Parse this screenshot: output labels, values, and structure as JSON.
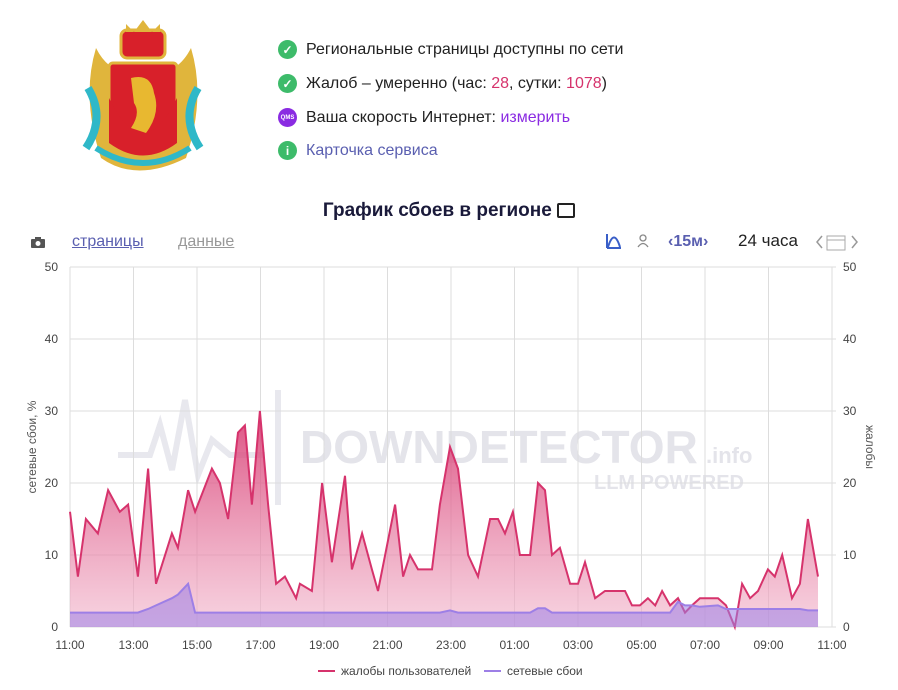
{
  "header": {
    "status": [
      {
        "text": "Региональные страницы доступны по сети"
      },
      {
        "text": "Жалоб – умеренно (час: ",
        "hour": 28,
        "sep": ", сутки: ",
        "day": 1078,
        "end": ")"
      },
      {
        "icon_text": "QMS",
        "text": "Ваша скорость Интернет: ",
        "link": "измерить"
      },
      {
        "link": "Карточка сервиса"
      }
    ]
  },
  "toolbar": {
    "tabs": [
      "страницы",
      "данные"
    ],
    "interval": "15м",
    "range": "24 часа"
  },
  "chart_data": {
    "type": "area",
    "title": "График сбоев в регионе",
    "y_axis_label": "сетевые сбои, %",
    "y2_axis_label": "жалобы",
    "watermark": [
      "DOWNDETECTOR",
      ".info",
      "LLM POWERED"
    ],
    "x": [
      0,
      0.25,
      0.5,
      0.88,
      1.2,
      1.57,
      1.83,
      2.14,
      2.46,
      2.71,
      3.21,
      3.4,
      3.72,
      3.94,
      4.47,
      4.72,
      4.98,
      5.29,
      5.51,
      5.73,
      5.98,
      6.24,
      6.49,
      6.77,
      7.12,
      7.24,
      7.62,
      7.94,
      8.25,
      8.66,
      8.88,
      9.2,
      9.51,
      9.7,
      10.24,
      10.49,
      10.71,
      10.96,
      11.4,
      11.65,
      11.97,
      12.22,
      12.54,
      12.85,
      13.23,
      13.48,
      13.7,
      13.95,
      14.17,
      14.49,
      14.74,
      14.96,
      15.18,
      15.43,
      15.75,
      16,
      16.22,
      16.54,
      16.85,
      17.48,
      17.7,
      17.95,
      18.2,
      18.43,
      18.65,
      18.9,
      19.15,
      19.37,
      19.59,
      19.84,
      20.41,
      20.66,
      20.94,
      21.17,
      21.42,
      21.67,
      21.98,
      22.2,
      22.43,
      22.74,
      22.99,
      23.24,
      23.56
    ],
    "series": [
      {
        "name": "жалобы пользователей",
        "color": "#d6336c",
        "axis": "y2",
        "values": [
          16,
          7,
          15,
          13,
          19,
          16,
          17,
          7,
          22,
          6,
          13,
          11,
          19,
          16,
          22,
          20,
          15,
          27,
          28,
          17,
          30,
          17,
          6,
          7,
          4,
          6,
          5,
          20,
          9,
          21,
          8,
          13,
          8,
          5,
          17,
          7,
          10,
          8,
          8,
          17,
          25,
          22,
          10,
          7,
          15,
          15,
          13,
          16,
          10,
          10,
          20,
          19,
          10,
          11,
          6,
          6,
          9,
          4,
          5,
          5,
          3,
          3,
          4,
          3,
          5,
          3,
          4,
          2,
          3,
          4,
          4,
          3,
          0,
          6,
          4,
          5,
          8,
          7,
          10,
          4,
          6,
          15,
          7
        ]
      },
      {
        "name": "сетевые сбои",
        "color": "#9d7fe6",
        "values": [
          2,
          2,
          2,
          2,
          2,
          2,
          2,
          2,
          2.5,
          3,
          4,
          4.5,
          6,
          2,
          2,
          2,
          2,
          2,
          2,
          2,
          2,
          2,
          2,
          2,
          2,
          2,
          2,
          2,
          2,
          2,
          2,
          2,
          2,
          2,
          2,
          2,
          2,
          2,
          2,
          2,
          2.3,
          2,
          2,
          2,
          2,
          2,
          2,
          2,
          2,
          2,
          2.6,
          2.6,
          2,
          2,
          2,
          2,
          2,
          2,
          2,
          2,
          2,
          2,
          2,
          2,
          2,
          2,
          3.5,
          3,
          3,
          2.8,
          3,
          2.5,
          2.5,
          2.5,
          2.5,
          2.5,
          2.5,
          2.5,
          2.5,
          2.5,
          2.5,
          2.3,
          2.3
        ]
      }
    ],
    "xlim": [
      0,
      24
    ],
    "xticks": [
      {
        "value": 0,
        "label": "11:00"
      },
      {
        "value": 2,
        "label": "13:00"
      },
      {
        "value": 4,
        "label": "15:00"
      },
      {
        "value": 6,
        "label": "17:00"
      },
      {
        "value": 8,
        "label": "19:00"
      },
      {
        "value": 10,
        "label": "21:00"
      },
      {
        "value": 12,
        "label": "23:00"
      },
      {
        "value": 14,
        "label": "01:00"
      },
      {
        "value": 16,
        "label": "03:00"
      },
      {
        "value": 18,
        "label": "05:00"
      },
      {
        "value": 20,
        "label": "07:00"
      },
      {
        "value": 22,
        "label": "09:00"
      },
      {
        "value": 24,
        "label": "11:00"
      }
    ],
    "ylim": [
      0,
      50
    ],
    "yticks": [
      0,
      10,
      20,
      30,
      40,
      50
    ],
    "y2lim": [
      0,
      50
    ],
    "y2ticks": [
      0,
      10,
      20,
      30,
      40,
      50
    ],
    "grid": true,
    "legend": "bottom"
  }
}
